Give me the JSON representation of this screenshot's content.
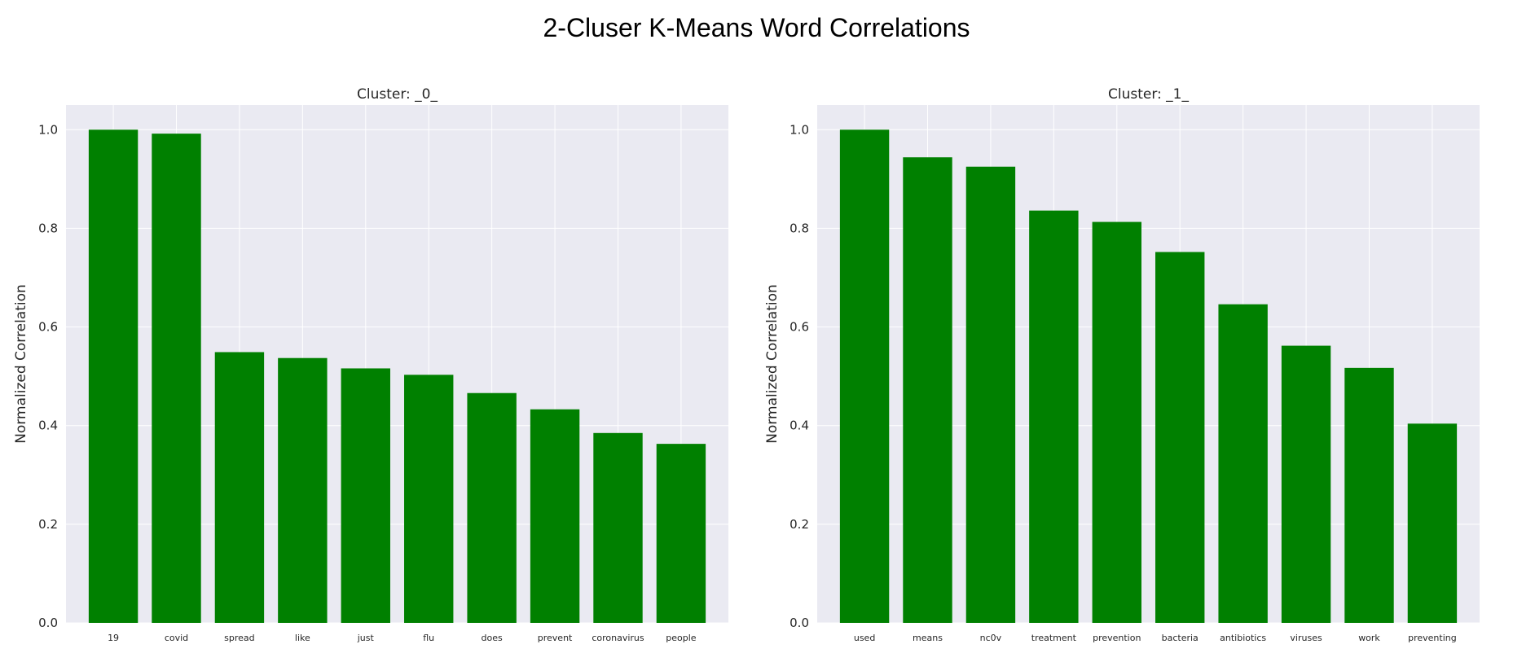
{
  "title": "2-Cluser K-Means Word Correlations",
  "colors": {
    "bar": "#008000",
    "plot_bg": "#eaeaf2",
    "grid": "#ffffff"
  },
  "chart_data": [
    {
      "type": "bar",
      "title": "Cluster: _0_",
      "xlabel": "",
      "ylabel": "Normalized Correlation",
      "ylim": [
        0,
        1.05
      ],
      "yticks": [
        "0.0",
        "0.2",
        "0.4",
        "0.6",
        "0.8",
        "1.0"
      ],
      "grid": true,
      "categories": [
        "19",
        "covid",
        "spread",
        "like",
        "just",
        "flu",
        "does",
        "prevent",
        "coronavirus",
        "people"
      ],
      "values": [
        1.0,
        0.992,
        0.549,
        0.537,
        0.516,
        0.503,
        0.466,
        0.433,
        0.385,
        0.363
      ]
    },
    {
      "type": "bar",
      "title": "Cluster: _1_",
      "xlabel": "",
      "ylabel": "Normalized Correlation",
      "ylim": [
        0,
        1.05
      ],
      "yticks": [
        "0.0",
        "0.2",
        "0.4",
        "0.6",
        "0.8",
        "1.0"
      ],
      "grid": true,
      "categories": [
        "used",
        "means",
        "nc0v",
        "treatment",
        "prevention",
        "bacteria",
        "antibiotics",
        "viruses",
        "work",
        "preventing"
      ],
      "values": [
        1.0,
        0.944,
        0.925,
        0.836,
        0.813,
        0.752,
        0.646,
        0.562,
        0.517,
        0.404
      ]
    }
  ]
}
